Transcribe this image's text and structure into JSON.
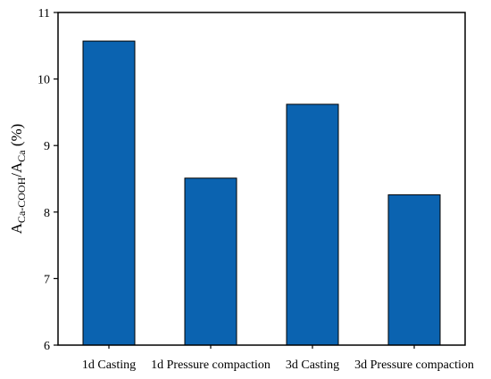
{
  "chart_data": {
    "type": "bar",
    "categories": [
      "1d Casting",
      "1d Pressure compaction",
      "3d Casting",
      "3d Pressure compaction"
    ],
    "values": [
      10.57,
      8.51,
      9.62,
      8.26
    ],
    "ylabel": {
      "base1": "A",
      "sub1": "Ca-COOH",
      "slash": "/",
      "base2": "A",
      "sub2": "Ca",
      "unit": " (%)"
    },
    "ylim": [
      6,
      11
    ],
    "yticks": [
      "6",
      "7",
      "8",
      "9",
      "10",
      "11"
    ],
    "bar_color": "#0B63B0",
    "bar_edge_color": "#000000",
    "grid": false
  }
}
